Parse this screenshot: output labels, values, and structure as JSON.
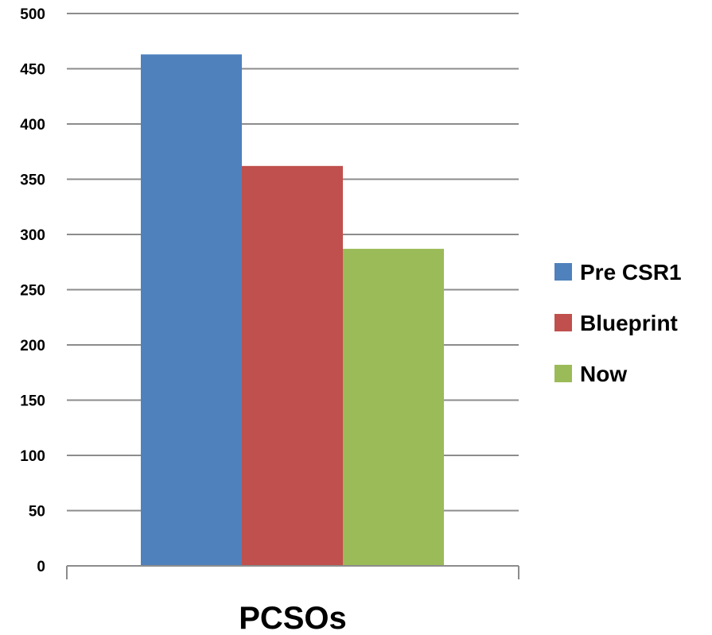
{
  "chart_data": {
    "type": "bar",
    "categories": [
      "PCSOs"
    ],
    "series": [
      {
        "name": "Pre CSR1",
        "values": [
          463
        ],
        "color": "#4F81BD"
      },
      {
        "name": "Blueprint",
        "values": [
          362
        ],
        "color": "#C0504D"
      },
      {
        "name": "Now",
        "values": [
          287
        ],
        "color": "#9BBB59"
      }
    ],
    "ylim": [
      0,
      500
    ],
    "yticks": [
      "0",
      "50",
      "100",
      "150",
      "200",
      "250",
      "300",
      "350",
      "400",
      "450",
      "500"
    ],
    "grid": true,
    "legend_position": "right"
  }
}
